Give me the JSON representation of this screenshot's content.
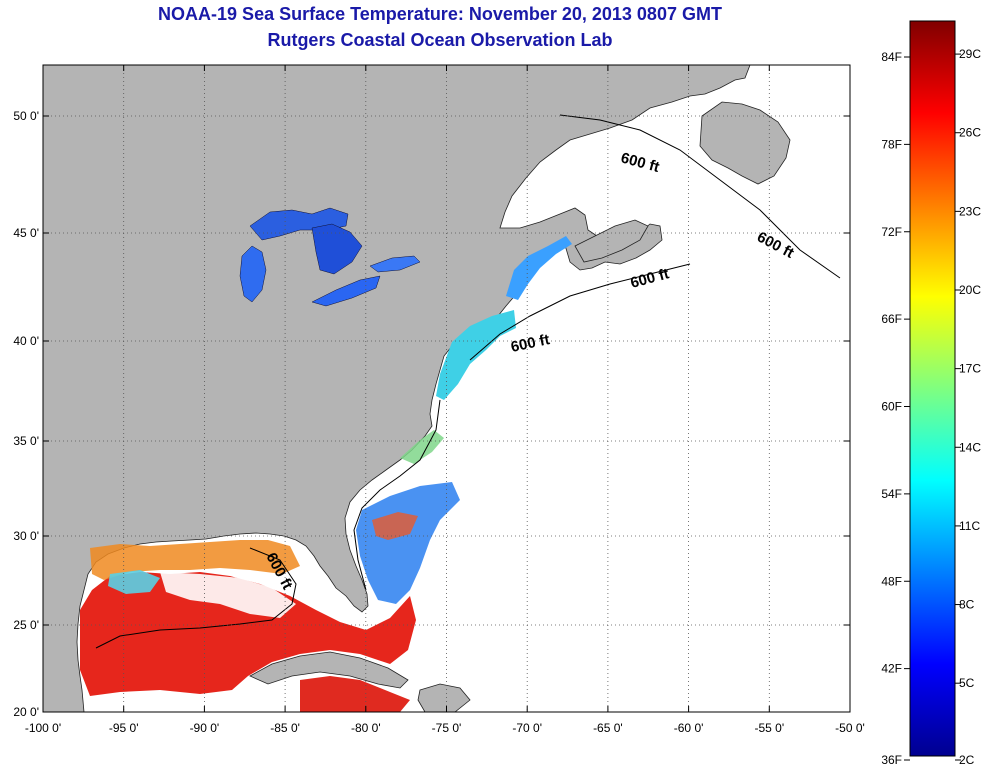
{
  "title": "NOAA-19 Sea Surface Temperature:  November 20, 2013 0807 GMT",
  "subtitle": "Rutgers Coastal Ocean Observation Lab",
  "map": {
    "lon_ticks": [
      "-100 0'",
      "-95 0'",
      "-90 0'",
      "-85 0'",
      "-80 0'",
      "-75 0'",
      "-70 0'",
      "-65 0'",
      "-60 0'",
      "-55 0'",
      "-50 0'"
    ],
    "lat_ticks": [
      "50 0'",
      "45 0'",
      "40 0'",
      "35 0'",
      "30 0'",
      "25 0'",
      "20 0'"
    ],
    "lon_range": [
      -100,
      -50
    ],
    "lat_range": [
      20,
      52
    ],
    "contour_label": "600 ft",
    "colors": {
      "land": "#b4b4b4",
      "ocean_no_data": "#ffffff",
      "grid": "#555555"
    }
  },
  "colorbar": {
    "fahrenheit_labels": [
      "84F",
      "78F",
      "72F",
      "66F",
      "60F",
      "54F",
      "48F",
      "42F",
      "36F"
    ],
    "celsius_labels": [
      "29C",
      "26C",
      "23C",
      "20C",
      "17C",
      "14C",
      "11C",
      "8C",
      "5C",
      "2C"
    ],
    "colormap": "jet",
    "min_color": "#00008f",
    "max_color": "#800000"
  }
}
